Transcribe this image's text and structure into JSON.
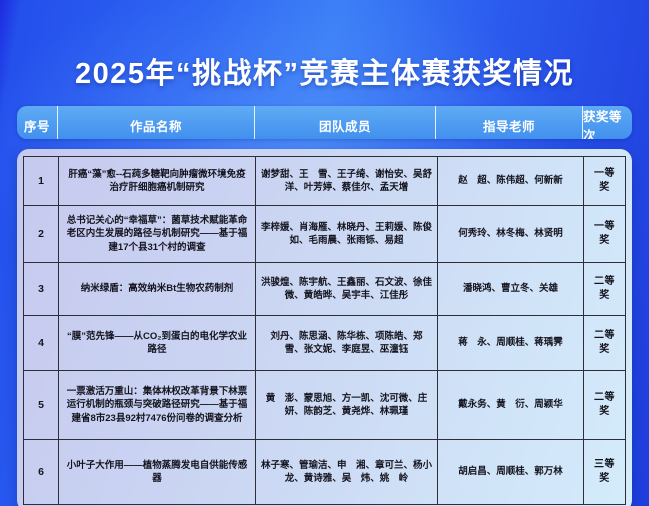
{
  "page": {
    "title": "2025年“挑战杯”竞赛主体赛获奖情况"
  },
  "table": {
    "columns": {
      "no": "序号",
      "title": "作品名称",
      "team": "团队成员",
      "advisor": "指导老师",
      "award": "获奖等次"
    },
    "rows": [
      {
        "no": "1",
        "title": "肝癌“藻”愈--石莼多糖靶向肿瘤微环境免疫治疗肝细胞癌机制研究",
        "members": "谢梦甜、王　雪、王子绮、谢怡安、吴舒洋、叶芳婷、蔡佳尔、孟天增",
        "advisors": "赵　超、陈伟超、何新新",
        "award": "一等奖"
      },
      {
        "no": "2",
        "title": "总书记关心的“幸福草”：菌草技术赋能革命老区内生发展的路径与机制研究——基于福建17个县31个村的调查",
        "members": "李梓媛、肖海雁、林晓丹、王莉媛、陈俊如、毛雨晨、张雨铄、易超",
        "advisors": "何秀玲、林冬梅、林贤明",
        "award": "一等奖"
      },
      {
        "no": "3",
        "title": "纳米绿盾：高效纳米Bt生物农药制剂",
        "members": "洪骏煌、陈宇航、王鑫丽、石文波、徐佳微、黄皓晔、吴宇丰、江佳彤",
        "advisors": "潘晓鸿、曹立冬、关雄",
        "award": "二等奖"
      },
      {
        "no": "4",
        "title": "“膜”范先锋——从CO₂到蛋白的电化学农业路径",
        "members": "刘丹、陈思涵、陈华栋、项陈皓、郑　雪、张文妮、李庭昱、巫潼钰",
        "advisors": "蒋　永、周顺桂、蒋瑀霁",
        "award": "二等奖"
      },
      {
        "no": "5",
        "title": "一票激活万重山：集体林权改革背景下林票运行机制的瓶颈与突破路径研究——基于福建省8市23县92村7476份问卷的调查分析",
        "members": "黄　澎、蒙思旭、方一凯、沈可微、庄　妍、陈韵芝、黄尧烨、林珮瑾",
        "advisors": "戴永务、黄　衍、周颖华",
        "award": "二等奖"
      },
      {
        "no": "6",
        "title": "小叶子大作用——植物蒸腾发电自供能传感器",
        "members": "林子寒、管瑜洁、申　湘、章可兰、杨小龙、黄诗雅、吴　炜、姚　岭",
        "advisors": "胡启昌、周顺桂、郭万林",
        "award": "三等奖"
      }
    ]
  },
  "colors": {
    "background_bright": "#3a7ef6",
    "background_deep": "#1f3ddd",
    "header_bar": "#4190ee",
    "panel_start": "#c6c9ef",
    "panel_end": "#d4ecfb",
    "grid_line": "#2e2e38",
    "title_text": "#ffffff"
  }
}
